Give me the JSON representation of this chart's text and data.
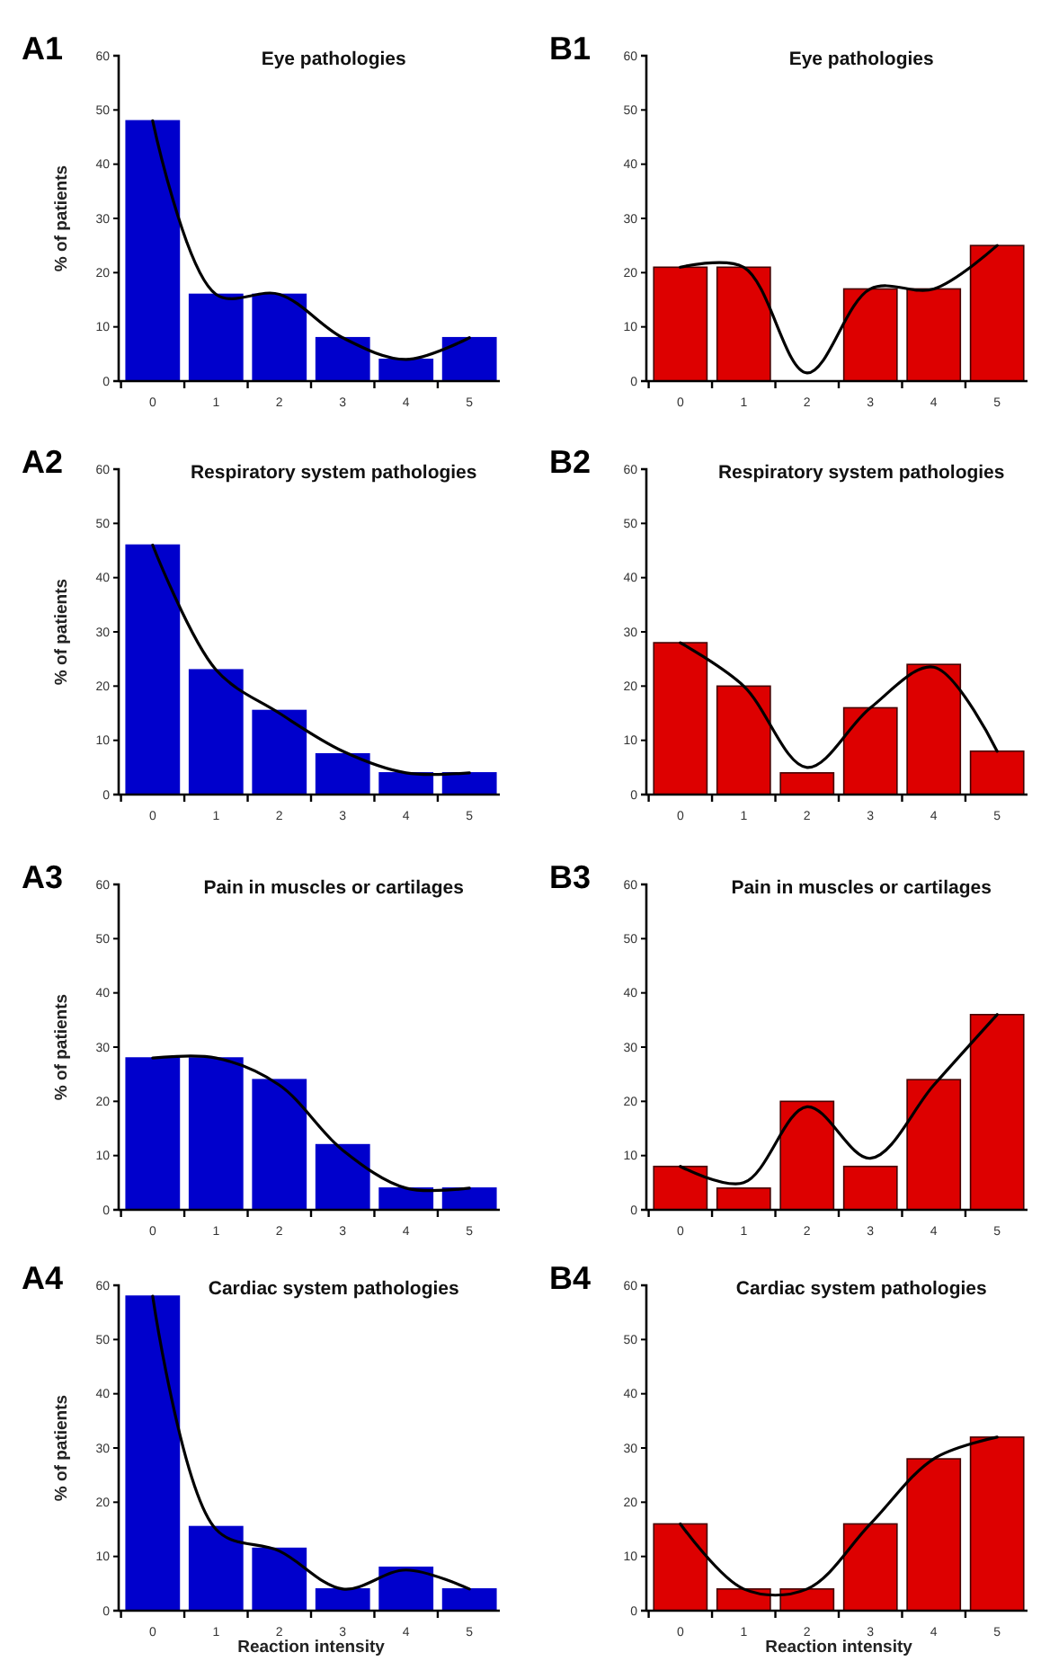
{
  "chart_data": [
    {
      "type": "bar",
      "title": "Eye pathologies",
      "annotations": [
        "A1"
      ],
      "ylabel": "% of patients",
      "categories": [
        "0",
        "1",
        "2",
        "3",
        "4",
        "5"
      ],
      "ylim": [
        0,
        60
      ],
      "yticks": [
        0,
        10,
        20,
        30,
        40,
        50,
        60
      ],
      "series": [
        {
          "color": "#0000cc",
          "values": [
            48,
            16,
            16,
            8,
            4,
            8
          ]
        },
        {
          "type": "line",
          "color": "#000000",
          "values": [
            48,
            16,
            16,
            8,
            4,
            8
          ]
        }
      ]
    },
    {
      "type": "bar",
      "title": "Eye pathologies",
      "annotations": [
        "B1"
      ],
      "categories": [
        "0",
        "1",
        "2",
        "3",
        "4",
        "5"
      ],
      "ylim": [
        0,
        60
      ],
      "yticks": [
        0,
        10,
        20,
        30,
        40,
        50,
        60
      ],
      "series": [
        {
          "color": "#dd0000",
          "values": [
            21,
            21,
            0,
            17,
            17,
            25
          ]
        },
        {
          "type": "line",
          "color": "#000000",
          "values": [
            21,
            21,
            1.5,
            17,
            17,
            25
          ]
        }
      ]
    },
    {
      "type": "bar",
      "title": "Respiratory system pathologies",
      "annotations": [
        "A2"
      ],
      "ylabel": "% of patients",
      "categories": [
        "0",
        "1",
        "2",
        "3",
        "4",
        "5"
      ],
      "ylim": [
        0,
        60
      ],
      "yticks": [
        0,
        10,
        20,
        30,
        40,
        50,
        60
      ],
      "series": [
        {
          "color": "#0000cc",
          "values": [
            46,
            23,
            15.5,
            7.5,
            4,
            4
          ]
        },
        {
          "type": "line",
          "color": "#000000",
          "values": [
            46,
            23,
            15,
            8,
            4,
            4
          ]
        }
      ]
    },
    {
      "type": "bar",
      "title": "Respiratory system pathologies",
      "annotations": [
        "B2"
      ],
      "categories": [
        "0",
        "1",
        "2",
        "3",
        "4",
        "5"
      ],
      "ylim": [
        0,
        60
      ],
      "yticks": [
        0,
        10,
        20,
        30,
        40,
        50,
        60
      ],
      "series": [
        {
          "color": "#dd0000",
          "values": [
            28,
            20,
            4,
            16,
            24,
            8
          ]
        },
        {
          "type": "line",
          "color": "#000000",
          "values": [
            28,
            20,
            5,
            16,
            23.5,
            8
          ]
        }
      ]
    },
    {
      "type": "bar",
      "title": "Pain in muscles or cartilages",
      "annotations": [
        "A3"
      ],
      "ylabel": "% of patients",
      "categories": [
        "0",
        "1",
        "2",
        "3",
        "4",
        "5"
      ],
      "ylim": [
        0,
        60
      ],
      "yticks": [
        0,
        10,
        20,
        30,
        40,
        50,
        60
      ],
      "series": [
        {
          "color": "#0000cc",
          "values": [
            28,
            28,
            24,
            12,
            4,
            4
          ]
        },
        {
          "type": "line",
          "color": "#000000",
          "values": [
            28,
            28,
            23,
            11,
            4,
            4
          ]
        }
      ]
    },
    {
      "type": "bar",
      "title": "Pain in muscles or cartilages",
      "annotations": [
        "B3"
      ],
      "categories": [
        "0",
        "1",
        "2",
        "3",
        "4",
        "5"
      ],
      "ylim": [
        0,
        60
      ],
      "yticks": [
        0,
        10,
        20,
        30,
        40,
        50,
        60
      ],
      "series": [
        {
          "color": "#dd0000",
          "values": [
            8,
            4,
            20,
            8,
            24,
            36
          ]
        },
        {
          "type": "line",
          "color": "#000000",
          "values": [
            8,
            5,
            19,
            9.5,
            23,
            36
          ]
        }
      ]
    },
    {
      "type": "bar",
      "title": "Cardiac system pathologies",
      "annotations": [
        "A4"
      ],
      "ylabel": "% of patients",
      "xlabel": "Reaction intensity",
      "categories": [
        "0",
        "1",
        "2",
        "3",
        "4",
        "5"
      ],
      "ylim": [
        0,
        60
      ],
      "yticks": [
        0,
        10,
        20,
        30,
        40,
        50,
        60
      ],
      "series": [
        {
          "color": "#0000cc",
          "values": [
            58,
            15.5,
            11.5,
            4,
            8,
            4
          ]
        },
        {
          "type": "line",
          "color": "#000000",
          "values": [
            58,
            15,
            11,
            4,
            7.5,
            4
          ]
        }
      ]
    },
    {
      "type": "bar",
      "title": "Cardiac system pathologies",
      "annotations": [
        "B4"
      ],
      "xlabel": "Reaction intensity",
      "categories": [
        "0",
        "1",
        "2",
        "3",
        "4",
        "5"
      ],
      "ylim": [
        0,
        60
      ],
      "yticks": [
        0,
        10,
        20,
        30,
        40,
        50,
        60
      ],
      "series": [
        {
          "color": "#dd0000",
          "values": [
            16,
            4,
            4,
            16,
            28,
            32
          ]
        },
        {
          "type": "line",
          "color": "#000000",
          "values": [
            16,
            4,
            4,
            16,
            28,
            32
          ]
        }
      ]
    }
  ]
}
